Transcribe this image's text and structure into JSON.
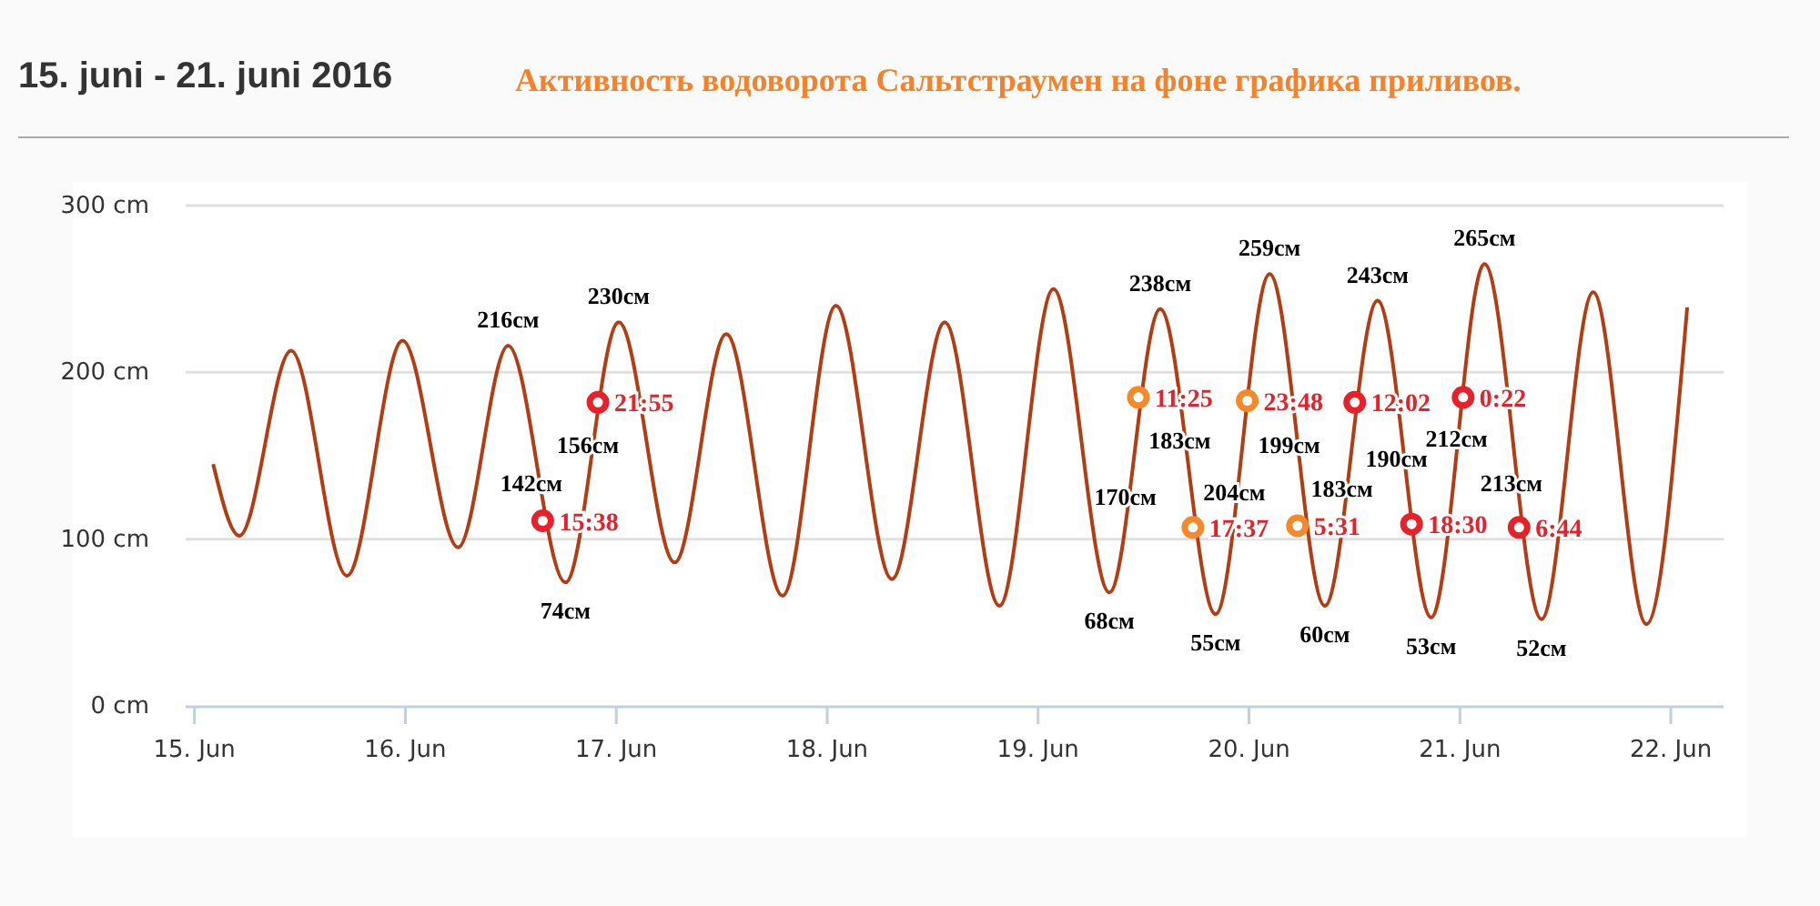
{
  "chart_data": {
    "type": "line",
    "title": "Активность водоворота Сальтстраумен на фоне графика приливов.",
    "subtitle": "15. juni - 21. juni 2016",
    "xlim": [
      "2016-06-14T23:00",
      "2016-06-22T06:00"
    ],
    "xticks": [
      {
        "value": "2016-06-15",
        "label": "15. Jun"
      },
      {
        "value": "2016-06-16",
        "label": "16. Jun"
      },
      {
        "value": "2016-06-17",
        "label": "17. Jun"
      },
      {
        "value": "2016-06-18",
        "label": "18. Jun"
      },
      {
        "value": "2016-06-19",
        "label": "19. Jun"
      },
      {
        "value": "2016-06-20",
        "label": "20. Jun"
      },
      {
        "value": "2016-06-21",
        "label": "21. Jun"
      },
      {
        "value": "2016-06-22",
        "label": "22. Jun"
      }
    ],
    "ylim": [
      0,
      300
    ],
    "yticks": [
      {
        "value": 0,
        "label": "0 cm"
      },
      {
        "value": 100,
        "label": "100 cm"
      },
      {
        "value": 200,
        "label": "200 cm"
      },
      {
        "value": 300,
        "label": "300 cm"
      }
    ],
    "grid": "y",
    "series": [
      {
        "color": "#b33c12",
        "marker": "none",
        "line_style": "solid",
        "x": [
          "2016-06-15T02:08",
          "2016-06-15T05:07",
          "2016-06-15T11:00",
          "2016-06-15T17:21",
          "2016-06-15T23:41",
          "2016-06-16T06:00",
          "2016-06-16T11:42",
          "2016-06-16T18:13",
          "2016-06-17T00:17",
          "2016-06-17T06:39",
          "2016-06-17T12:31",
          "2016-06-17T18:56",
          "2016-06-18T01:00",
          "2016-06-18T07:22",
          "2016-06-18T13:23",
          "2016-06-18T19:36",
          "2016-06-19T01:45",
          "2016-06-19T08:07",
          "2016-06-19T13:54",
          "2016-06-19T20:12",
          "2016-06-20T02:21",
          "2016-06-20T08:38",
          "2016-06-20T14:38",
          "2016-06-20T20:44",
          "2016-06-21T02:48",
          "2016-06-21T09:17",
          "2016-06-21T15:10",
          "2016-06-21T21:14",
          "2016-06-22T01:52"
        ],
        "values": [
          145,
          102,
          213,
          78,
          219,
          95,
          216,
          74,
          230,
          86,
          223,
          66,
          240,
          76,
          230,
          60,
          250,
          68,
          238,
          55,
          259,
          60,
          243,
          53,
          265,
          52,
          248,
          49,
          239
        ],
        "value_labels": [
          null,
          null,
          null,
          null,
          null,
          null,
          "216см",
          "74см",
          "230см",
          null,
          null,
          null,
          null,
          null,
          null,
          null,
          null,
          "68см",
          "238см",
          "55см",
          "259см",
          "60см",
          "243см",
          "53см",
          "265см",
          "52см",
          null,
          null,
          null
        ]
      },
      {
        "type": "scatter",
        "color": "#e8202a",
        "marker": "circle",
        "x": [
          "2016-06-16T15:38",
          "2016-06-16T21:55",
          "2016-06-20T12:02",
          "2016-06-20T18:30",
          "2016-06-21T00:22",
          "2016-06-21T06:44"
        ],
        "values": [
          111,
          182,
          182,
          109,
          185,
          107
        ]
      },
      {
        "type": "scatter",
        "color": "#f5892a",
        "marker": "circle",
        "x": [
          "2016-06-19T11:25",
          "2016-06-19T17:37",
          "2016-06-19T23:48",
          "2016-06-20T05:31"
        ],
        "values": [
          185,
          107,
          183,
          108
        ]
      }
    ],
    "annotations": [
      {
        "text": "15:38",
        "x": "2016-06-16T15:38",
        "y": 111
      },
      {
        "text": "21:55",
        "x": "2016-06-16T21:55",
        "y": 182
      },
      {
        "text": "11:25",
        "x": "2016-06-19T11:25",
        "y": 185
      },
      {
        "text": "17:37",
        "x": "2016-06-19T17:37",
        "y": 107
      },
      {
        "text": "23:48",
        "x": "2016-06-19T23:48",
        "y": 183
      },
      {
        "text": "5:31",
        "x": "2016-06-20T05:31",
        "y": 108
      },
      {
        "text": "12:02",
        "x": "2016-06-20T12:02",
        "y": 182
      },
      {
        "text": "18:30",
        "x": "2016-06-20T18:30",
        "y": 109
      },
      {
        "text": "0:22",
        "x": "2016-06-21T00:22",
        "y": 185
      },
      {
        "text": "6:44",
        "x": "2016-06-21T06:44",
        "y": 107
      },
      {
        "text": "142см",
        "x": "2016-06-16T14:20",
        "y": 134
      },
      {
        "text": "156см",
        "x": "2016-06-16T20:46",
        "y": 157
      },
      {
        "text": "170см",
        "x": "2016-06-19T09:55",
        "y": 126
      },
      {
        "text": "183см",
        "x": "2016-06-19T16:07",
        "y": 160
      },
      {
        "text": "204см",
        "x": "2016-06-19T22:20",
        "y": 129
      },
      {
        "text": "199см",
        "x": "2016-06-20T04:34",
        "y": 157
      },
      {
        "text": "183см",
        "x": "2016-06-20T10:34",
        "y": 131
      },
      {
        "text": "190см",
        "x": "2016-06-20T16:47",
        "y": 149
      },
      {
        "text": "212см",
        "x": "2016-06-20T23:37",
        "y": 161
      },
      {
        "text": "213см",
        "x": "2016-06-21T05:51",
        "y": 134
      }
    ]
  }
}
